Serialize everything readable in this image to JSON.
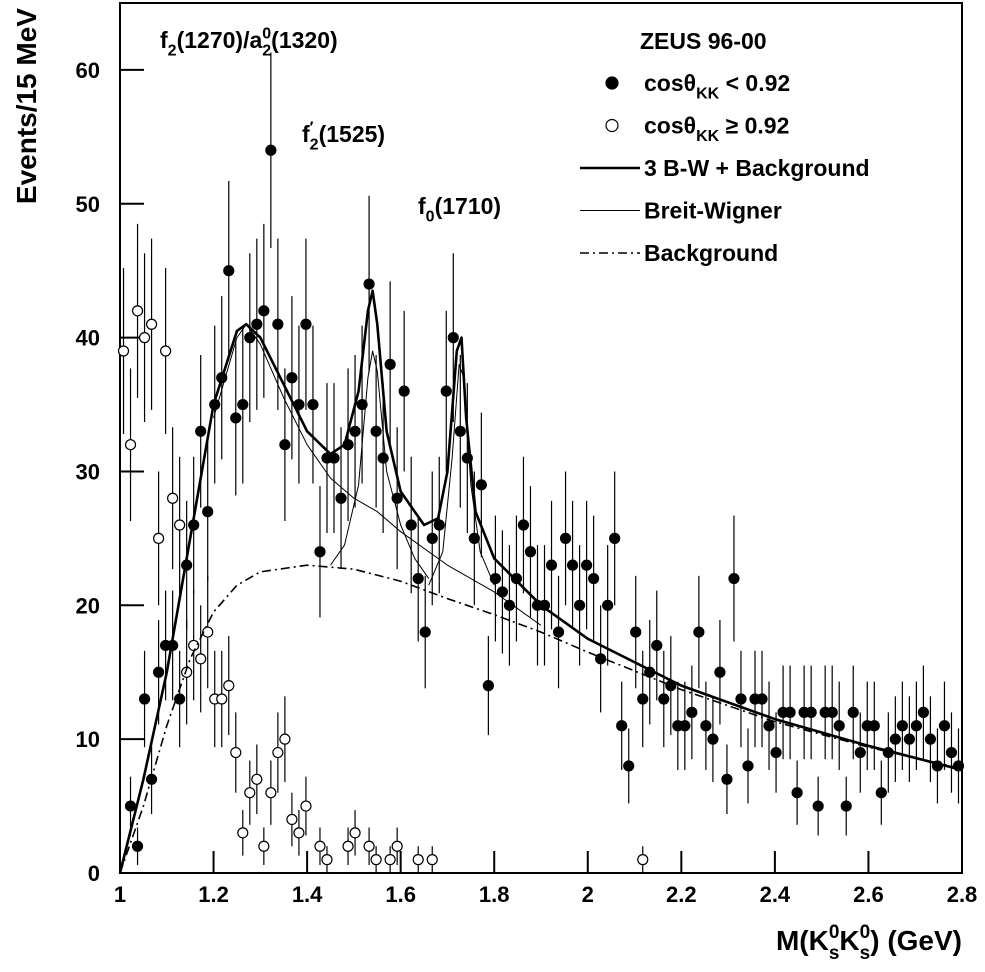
{
  "chart_data": {
    "type": "scatter",
    "ylabel": "Events/15 MeV",
    "xlabel": [
      {
        "text": "M(K"
      },
      {
        "text": "0",
        "shift": "sup"
      },
      {
        "text": "s",
        "shift": "sub"
      },
      {
        "text": "K"
      },
      {
        "text": "0",
        "shift": "sup"
      },
      {
        "text": "s",
        "shift": "sub"
      },
      {
        "text": ")  (GeV)"
      }
    ],
    "xlim": [
      1,
      2.8
    ],
    "ylim": [
      0,
      65
    ],
    "xticks": [
      1,
      1.2,
      1.4,
      1.6,
      1.8,
      2,
      2.2,
      2.4,
      2.6,
      2.8
    ],
    "yticks": [
      0,
      10,
      20,
      30,
      40,
      50,
      60
    ],
    "legend": {
      "title": "ZEUS 96-00",
      "position": "upper right"
    },
    "annotations": [
      [
        {
          "text": "f"
        },
        {
          "text": "2",
          "shift": "sub"
        },
        {
          "text": "(1270)/a"
        },
        {
          "text": "2",
          "shift": "sub"
        },
        {
          "text": "0",
          "shift": "sup"
        },
        {
          "text": "(1320)"
        }
      ],
      [
        {
          "text": "f"
        },
        {
          "text": "′",
          "shift": "sup"
        },
        {
          "text": "2",
          "shift": "sub"
        },
        {
          "text": "(1525)"
        }
      ],
      [
        {
          "text": "f"
        },
        {
          "text": "0",
          "shift": "sub"
        },
        {
          "text": "(1710)"
        }
      ]
    ],
    "series": [
      {
        "type": "errorbar",
        "marker": "filled",
        "color": "#000000",
        "name": [
          {
            "text": "cosθ"
          },
          {
            "text": "KK",
            "shift": "sub"
          },
          {
            "text": " < 0.92"
          }
        ],
        "x": [
          1.0225,
          1.0375,
          1.0525,
          1.0675,
          1.0825,
          1.0975,
          1.1125,
          1.1275,
          1.1425,
          1.1575,
          1.1725,
          1.1875,
          1.2025,
          1.2175,
          1.2325,
          1.2475,
          1.2625,
          1.2775,
          1.2925,
          1.3075,
          1.3225,
          1.3375,
          1.3525,
          1.3675,
          1.3825,
          1.3975,
          1.4125,
          1.4275,
          1.4425,
          1.4575,
          1.4725,
          1.4875,
          1.5025,
          1.5175,
          1.5325,
          1.5475,
          1.5625,
          1.5775,
          1.5925,
          1.6075,
          1.6225,
          1.6375,
          1.6525,
          1.6675,
          1.6825,
          1.6975,
          1.7125,
          1.7275,
          1.7425,
          1.7575,
          1.7725,
          1.7875,
          1.8025,
          1.8175,
          1.8325,
          1.8475,
          1.8625,
          1.8775,
          1.8925,
          1.9075,
          1.9225,
          1.9375,
          1.9525,
          1.9675,
          1.9825,
          1.9975,
          2.0125,
          2.0275,
          2.0425,
          2.0575,
          2.0725,
          2.0875,
          2.1025,
          2.1175,
          2.1325,
          2.1475,
          2.1625,
          2.1775,
          2.1925,
          2.2075,
          2.2225,
          2.2375,
          2.2525,
          2.2675,
          2.2825,
          2.2975,
          2.3125,
          2.3275,
          2.3425,
          2.3575,
          2.3725,
          2.3875,
          2.4025,
          2.4175,
          2.4325,
          2.4475,
          2.4625,
          2.4775,
          2.4925,
          2.5075,
          2.5225,
          2.5375,
          2.5525,
          2.5675,
          2.5825,
          2.5975,
          2.6125,
          2.6275,
          2.6425,
          2.6575,
          2.6725,
          2.6875,
          2.7025,
          2.7175,
          2.7325,
          2.7475,
          2.7625,
          2.7775,
          2.7925
        ],
        "values": [
          5,
          2,
          13,
          7,
          15,
          17,
          17,
          13,
          23,
          26,
          33,
          27,
          35,
          37,
          45,
          34,
          35,
          40,
          41,
          42,
          54,
          41,
          32,
          37,
          35,
          41,
          35,
          24,
          31,
          31,
          28,
          32,
          33,
          35,
          44,
          33,
          31,
          38,
          28,
          36,
          26,
          22,
          18,
          25,
          26,
          36,
          40,
          33,
          31,
          25,
          29,
          14,
          22,
          21,
          20,
          22,
          26,
          24,
          20,
          20,
          23,
          18,
          25,
          23,
          20,
          23,
          22,
          16,
          20,
          25,
          11,
          8,
          18,
          13,
          15,
          17,
          13,
          14,
          11,
          11,
          12,
          18,
          11,
          10,
          15,
          7,
          22,
          13,
          8,
          13,
          13,
          11,
          9,
          12,
          12,
          6,
          12,
          12,
          5,
          12,
          12,
          11,
          5,
          12,
          9,
          11,
          11,
          6,
          9,
          10,
          11,
          10,
          11,
          12,
          10,
          8,
          11,
          9,
          8
        ],
        "errors": [
          2.2,
          1.4,
          3.6,
          2.6,
          3.9,
          4.1,
          4.1,
          3.6,
          4.8,
          5.1,
          5.7,
          5.2,
          5.9,
          6.1,
          6.7,
          5.8,
          5.9,
          6.3,
          6.4,
          6.5,
          7.3,
          6.4,
          5.7,
          6.1,
          5.9,
          6.4,
          5.9,
          4.9,
          5.6,
          5.6,
          5.3,
          5.7,
          5.7,
          5.9,
          6.6,
          5.7,
          5.6,
          6.2,
          5.3,
          6,
          5.1,
          4.7,
          4.2,
          5,
          5.1,
          6,
          6.3,
          5.7,
          5.6,
          5,
          5.4,
          3.7,
          4.7,
          4.6,
          4.5,
          4.7,
          5.1,
          4.9,
          4.5,
          4.5,
          4.8,
          4.2,
          5,
          4.8,
          4.5,
          4.8,
          4.7,
          4,
          4.5,
          5,
          3.3,
          2.8,
          4.2,
          3.6,
          3.9,
          4.1,
          3.6,
          3.7,
          3.3,
          3.3,
          3.5,
          4.2,
          3.3,
          3.2,
          3.9,
          2.6,
          4.7,
          3.6,
          2.8,
          3.6,
          3.6,
          3.3,
          3,
          3.5,
          3.5,
          2.4,
          3.5,
          3.5,
          2.2,
          3.5,
          3.5,
          3.3,
          2.2,
          3.5,
          3,
          3.3,
          3.3,
          2.4,
          3,
          3.2,
          3.3,
          3.2,
          3.3,
          3.5,
          3.2,
          2.8,
          3.3,
          3,
          2.8
        ]
      },
      {
        "type": "errorbar",
        "marker": "open",
        "color": "#000000",
        "name": [
          {
            "text": "cosθ"
          },
          {
            "text": "KK",
            "shift": "sub"
          },
          {
            "text": " ≥ 0.92"
          }
        ],
        "x": [
          1.0075,
          1.0225,
          1.0375,
          1.0525,
          1.0675,
          1.0825,
          1.0975,
          1.1125,
          1.1275,
          1.1425,
          1.1575,
          1.1725,
          1.1875,
          1.2025,
          1.2175,
          1.2325,
          1.2475,
          1.2625,
          1.2775,
          1.2925,
          1.3075,
          1.3225,
          1.3375,
          1.3525,
          1.3675,
          1.3825,
          1.3975,
          1.4275,
          1.4425,
          1.4875,
          1.5025,
          1.5325,
          1.5475,
          1.5775,
          1.5925,
          1.6375,
          1.6675,
          2.1175
        ],
        "values": [
          39,
          32,
          42,
          40,
          41,
          25,
          39,
          28,
          26,
          15,
          17,
          16,
          18,
          13,
          13,
          14,
          9,
          3,
          6,
          7,
          2,
          6,
          9,
          10,
          4,
          3,
          5,
          2,
          1,
          2,
          3,
          2,
          1,
          1,
          2,
          1,
          1,
          1
        ],
        "errors": [
          6.2,
          5.7,
          6.5,
          6.3,
          6.4,
          5,
          6.2,
          5.3,
          5.1,
          3.9,
          4.1,
          4,
          4.2,
          3.6,
          3.6,
          3.7,
          3,
          1.7,
          2.4,
          2.6,
          1.4,
          2.4,
          3,
          3.2,
          2,
          1.7,
          2.2,
          1.4,
          1,
          1.4,
          1.7,
          1.4,
          1,
          1,
          1.4,
          1,
          1,
          1
        ]
      },
      {
        "type": "line",
        "linewidth": 2.6,
        "linestyle": "solid",
        "color": "#000000",
        "name": [
          {
            "text": "3 B-W + Background"
          }
        ],
        "x": [
          1.0,
          1.05,
          1.1,
          1.15,
          1.2,
          1.25,
          1.27,
          1.3,
          1.35,
          1.4,
          1.45,
          1.48,
          1.51,
          1.53,
          1.54,
          1.55,
          1.57,
          1.6,
          1.65,
          1.68,
          1.7,
          1.72,
          1.73,
          1.74,
          1.76,
          1.8,
          1.9,
          2.0,
          2.2,
          2.4,
          2.6,
          2.8
        ],
        "values": [
          0,
          7,
          15,
          25,
          35,
          40.5,
          41,
          40,
          36.5,
          33,
          31.3,
          32,
          36,
          42,
          43.5,
          41,
          33,
          28.5,
          26,
          26.5,
          30,
          39,
          40,
          34,
          27,
          23.5,
          20,
          17.5,
          14,
          11.5,
          9.5,
          7.7
        ]
      },
      {
        "type": "line",
        "linewidth": 1,
        "linestyle": "solid",
        "color": "#000000",
        "name": [
          {
            "text": "Breit-Wigner"
          }
        ],
        "x": [
          1.2,
          1.25,
          1.27,
          1.3,
          1.35,
          1.4,
          1.45,
          1.5,
          1.55,
          1.6,
          1.7,
          1.8,
          1.9,
          null,
          1.45,
          1.48,
          1.51,
          1.53,
          1.54,
          1.55,
          1.57,
          1.6,
          1.63,
          1.66,
          null,
          1.66,
          1.69,
          1.71,
          1.725,
          1.735,
          1.75,
          1.77,
          1.8
        ],
        "values": [
          34,
          40,
          41,
          39.5,
          35.5,
          32,
          29.5,
          28,
          27,
          25.5,
          23,
          21,
          18.5,
          null,
          23,
          24.5,
          29,
          37,
          39,
          37.5,
          30,
          26,
          23.5,
          22,
          null,
          21.5,
          24,
          31,
          38,
          37,
          29,
          24,
          21.5
        ]
      },
      {
        "type": "line",
        "linewidth": 1.6,
        "linestyle": "dashdot",
        "color": "#000000",
        "name": [
          {
            "text": "Background"
          }
        ],
        "x": [
          1.0,
          1.05,
          1.1,
          1.15,
          1.2,
          1.25,
          1.3,
          1.4,
          1.5,
          1.6,
          1.7,
          1.8,
          1.9,
          2.0,
          2.2,
          2.4,
          2.6,
          2.8
        ],
        "values": [
          0,
          5,
          11,
          16,
          19.5,
          21.5,
          22.5,
          23,
          22.7,
          21.8,
          20.5,
          19.3,
          18,
          16.5,
          13.7,
          11.3,
          9.4,
          7.8
        ]
      }
    ]
  }
}
